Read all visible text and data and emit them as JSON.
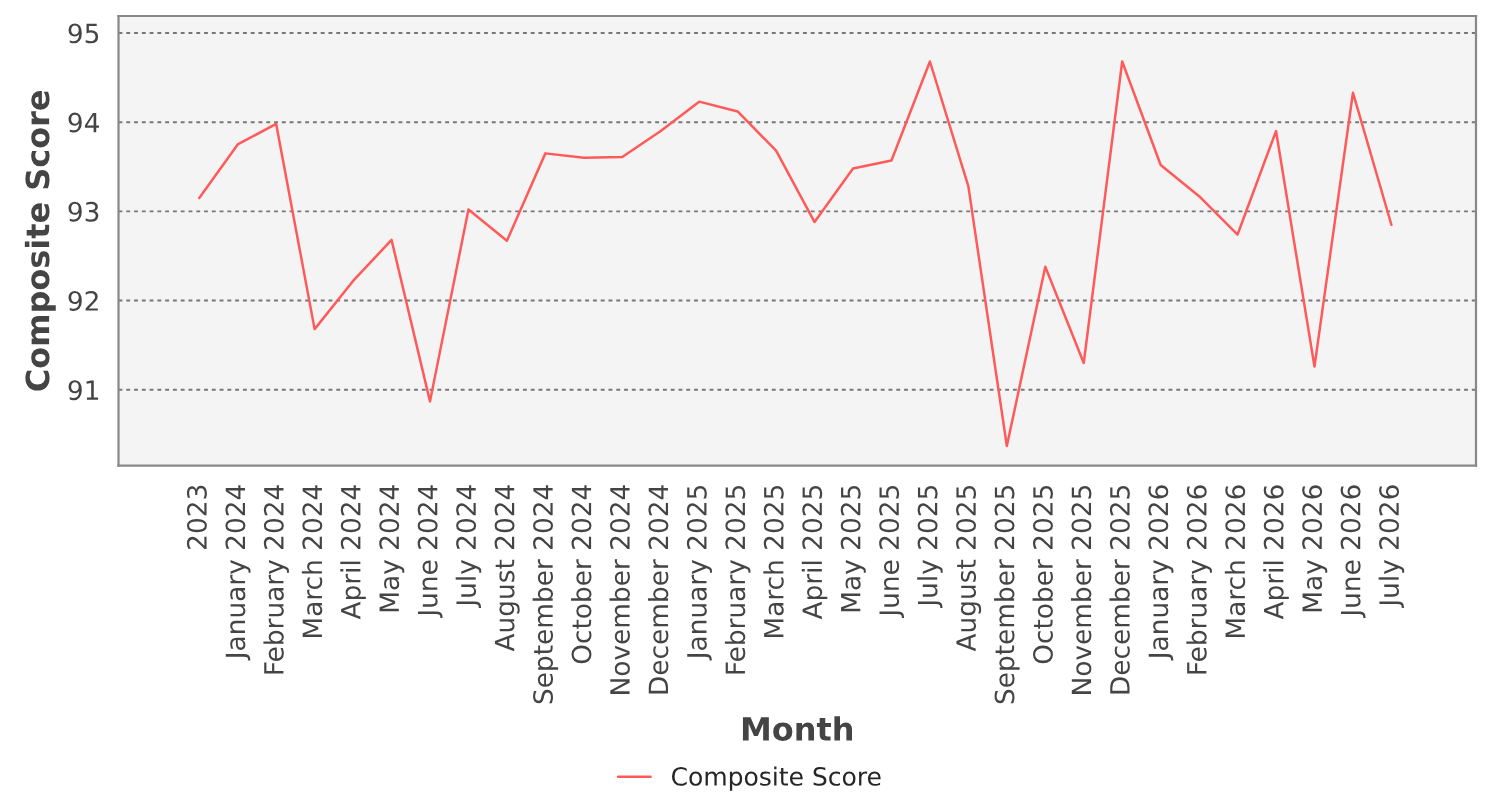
{
  "chart_data": {
    "type": "line",
    "xlabel": "Month",
    "ylabel": "Composite Score",
    "categories": [
      "2023",
      "January 2024",
      "February 2024",
      "March 2024",
      "April 2024",
      "May 2024",
      "June 2024",
      "July 2024",
      "August 2024",
      "September 2024",
      "October 2024",
      "November 2024",
      "December 2024",
      "January 2025",
      "February 2025",
      "March 2025",
      "April 2025",
      "May 2025",
      "June 2025",
      "July 2025",
      "August 2025",
      "September 2025",
      "October 2025",
      "November 2025",
      "December 2025",
      "January 2026",
      "February 2026",
      "March 2026",
      "April 2026",
      "May 2026",
      "June 2026",
      "July 2026"
    ],
    "series": [
      {
        "name": "Composite Score",
        "color": "#ff5a5a",
        "values": [
          93.15,
          93.75,
          93.98,
          91.68,
          92.22,
          92.68,
          90.87,
          93.02,
          92.67,
          93.65,
          93.6,
          93.61,
          93.9,
          94.23,
          94.12,
          93.68,
          92.88,
          93.48,
          93.57,
          94.68,
          93.28,
          90.37,
          92.38,
          91.3,
          94.68,
          93.52,
          93.17,
          92.74,
          93.9,
          91.26,
          94.33,
          92.85
        ]
      }
    ],
    "ylim": [
      90.15,
      95.19
    ],
    "yticks": [
      91,
      92,
      93,
      94,
      95
    ],
    "grid": "y",
    "legend": "bottom",
    "marker": "none",
    "line_style": "solid"
  }
}
